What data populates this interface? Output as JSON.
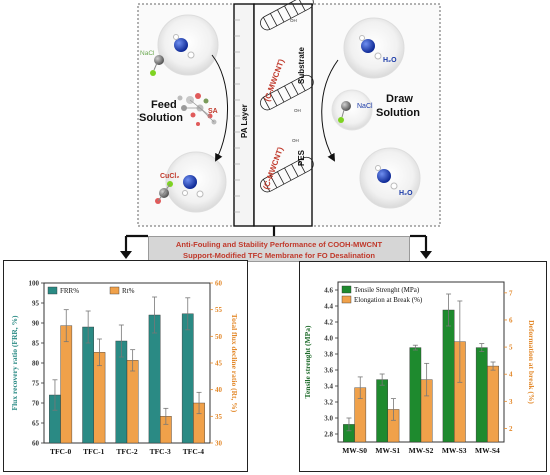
{
  "schematic": {
    "feed_label": [
      "Feed",
      "Solution"
    ],
    "draw_label": [
      "Draw",
      "Solution"
    ],
    "pa_layer": "PA Layer",
    "substrate": "Substrate",
    "cmwcnt": "(C-MWCNT)",
    "pes": "PES",
    "sa": "SA",
    "nacl": "NaCl",
    "cucl2": "CuCl₂",
    "h2o": "H₂O",
    "oh": "OH",
    "colors": {
      "accent_red": "#c0392b",
      "water_blue": "#1a3aa8",
      "cl_green": "#7ed321"
    }
  },
  "banner": {
    "line1": "Anti-Fouling and Stability Performance of COOH-MWCNT",
    "line2": "Support-Modified TFC Membrane for FO Desalination"
  },
  "chart_data": [
    {
      "type": "bar",
      "categories": [
        "TFC-0",
        "TFC-1",
        "TFC-2",
        "TFC-3",
        "TFC-4"
      ],
      "series": [
        {
          "name": "FRR%",
          "axis": "left",
          "color": "#2a8a84",
          "values": [
            72,
            89,
            85.5,
            92,
            92.3
          ],
          "errors": [
            3.8,
            4,
            4,
            4.5,
            4
          ]
        },
        {
          "name": "Rt%",
          "axis": "right",
          "color": "#f0a14a",
          "values": [
            52,
            47,
            45.5,
            35,
            37.5
          ],
          "errors": [
            3,
            2.5,
            2,
            1.5,
            2
          ]
        }
      ],
      "ylabel": "Flux recovery ratio (FRR, %)",
      "y2label": "Total flux decline ratio (Rt, %)",
      "ylim": [
        60,
        100
      ],
      "y2lim": [
        30,
        60
      ],
      "yticks": [
        60,
        65,
        70,
        75,
        80,
        85,
        90,
        95,
        100
      ],
      "y2ticks": [
        30,
        35,
        40,
        45,
        50,
        55,
        60
      ],
      "legend": "top-left"
    },
    {
      "type": "bar",
      "categories": [
        "MW-S0",
        "MW-S1",
        "MW-S2",
        "MW-S3",
        "MW-S4"
      ],
      "series": [
        {
          "name": "Tensile Strenght (MPa)",
          "axis": "left",
          "color": "#1e8a2e",
          "values": [
            2.92,
            3.48,
            3.88,
            4.35,
            3.88
          ],
          "errors": [
            0.08,
            0.07,
            0.03,
            0.2,
            0.05
          ]
        },
        {
          "name": "Elongation at Break (%)",
          "axis": "right",
          "color": "#f0a14a",
          "values": [
            3.5,
            2.7,
            3.8,
            5.2,
            4.3
          ],
          "errors": [
            0.4,
            0.4,
            0.6,
            1.5,
            0.15
          ]
        }
      ],
      "ylabel": "Tensile strenght (MPa)",
      "y2label": "Deformation at break (%)",
      "ylim": [
        2.7,
        4.7
      ],
      "y2lim": [
        1.5,
        7.4
      ],
      "yticks": [
        2.8,
        3.0,
        3.2,
        3.4,
        3.6,
        3.8,
        4.0,
        4.2,
        4.4,
        4.6
      ],
      "y2ticks": [
        2,
        3,
        4,
        5,
        6,
        7
      ],
      "legend": "top-left"
    }
  ]
}
